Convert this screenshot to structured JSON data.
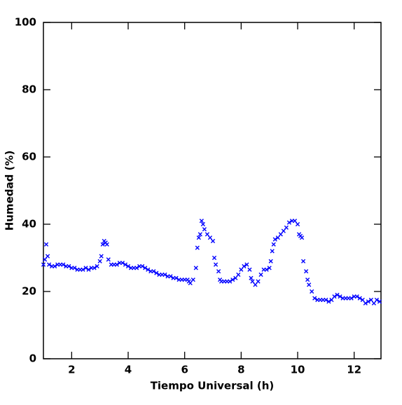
{
  "chart_data": {
    "type": "scatter",
    "xlabel": "Tiempo Universal (h)",
    "ylabel": "Humedad (%)",
    "x": [
      1.0,
      1.05,
      1.1,
      1.15,
      1.2,
      1.3,
      1.4,
      1.5,
      1.6,
      1.7,
      1.8,
      1.9,
      2.0,
      2.1,
      2.2,
      2.3,
      2.4,
      2.5,
      2.6,
      2.7,
      2.8,
      2.9,
      3.0,
      3.05,
      3.1,
      3.15,
      3.2,
      3.25,
      3.3,
      3.4,
      3.5,
      3.6,
      3.7,
      3.8,
      3.9,
      4.0,
      4.1,
      4.2,
      4.3,
      4.4,
      4.5,
      4.6,
      4.7,
      4.8,
      4.9,
      5.0,
      5.1,
      5.2,
      5.3,
      5.4,
      5.5,
      5.6,
      5.7,
      5.8,
      5.9,
      6.0,
      6.1,
      6.15,
      6.2,
      6.3,
      6.4,
      6.45,
      6.5,
      6.55,
      6.6,
      6.65,
      6.7,
      6.8,
      6.9,
      7.0,
      7.05,
      7.1,
      7.2,
      7.25,
      7.3,
      7.4,
      7.5,
      7.6,
      7.7,
      7.8,
      7.9,
      8.0,
      8.1,
      8.2,
      8.3,
      8.35,
      8.4,
      8.5,
      8.6,
      8.7,
      8.8,
      8.9,
      9.0,
      9.05,
      9.1,
      9.15,
      9.2,
      9.3,
      9.4,
      9.5,
      9.6,
      9.7,
      9.8,
      9.9,
      10.0,
      10.05,
      10.1,
      10.15,
      10.2,
      10.3,
      10.35,
      10.4,
      10.5,
      10.6,
      10.7,
      10.8,
      10.9,
      11.0,
      11.1,
      11.2,
      11.3,
      11.4,
      11.5,
      11.6,
      11.7,
      11.8,
      11.9,
      12.0,
      12.1,
      12.2,
      12.3,
      12.4,
      12.5,
      12.6,
      12.7,
      12.8,
      12.9
    ],
    "series": [
      {
        "color": "#0000ff",
        "values": [
          28,
          29.5,
          34,
          30.5,
          28,
          27.5,
          27.5,
          28,
          28,
          28,
          27.5,
          27.5,
          27,
          27,
          26.5,
          26.5,
          26.5,
          27,
          26.5,
          27,
          27,
          27.5,
          29,
          30.5,
          34,
          35,
          34.5,
          34,
          29.5,
          28,
          28,
          28,
          28.5,
          28.5,
          28,
          27.5,
          27,
          27,
          27,
          27.5,
          27.5,
          27,
          26.5,
          26,
          26,
          25.5,
          25,
          25,
          25,
          24.5,
          24.5,
          24,
          24,
          23.5,
          23.5,
          23.5,
          23.5,
          23,
          22.5,
          23.5,
          27,
          33,
          36,
          37,
          41,
          40,
          38.5,
          37,
          36,
          35,
          30,
          28,
          26,
          23.5,
          23,
          23,
          23,
          23,
          23.5,
          24,
          25,
          26.5,
          27.5,
          28,
          26.5,
          24,
          23,
          22,
          23,
          25,
          26.5,
          26.5,
          27,
          29,
          32,
          34,
          35.5,
          36,
          37,
          38,
          39,
          40.5,
          41,
          41,
          40,
          37,
          36.5,
          36,
          29,
          26,
          23.5,
          22,
          20,
          18,
          17.5,
          17.5,
          17.5,
          17.5,
          17,
          17.5,
          18.5,
          19,
          18.5,
          18,
          18,
          18,
          18,
          18.5,
          18.5,
          18,
          17.5,
          16.5,
          17,
          17.5,
          16.5,
          17.5,
          17
        ]
      }
    ],
    "xlim": [
      1.0,
      12.95
    ],
    "ylim": [
      0,
      100
    ],
    "xticks": [
      2,
      4,
      6,
      8,
      10,
      12
    ],
    "yticks": [
      0,
      20,
      40,
      60,
      80,
      100
    ]
  }
}
